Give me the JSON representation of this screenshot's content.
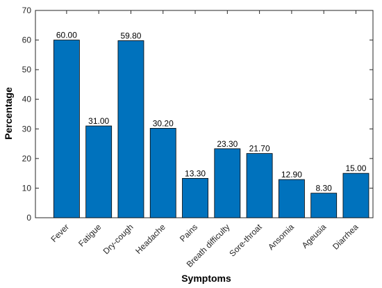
{
  "chart_data": {
    "type": "bar",
    "categories": [
      "Fever",
      "Fatigue",
      "Dry-cough",
      "Headache",
      "Pains",
      "Breath difficulty",
      "Sore-throat",
      "Ansomia",
      "Ageusia",
      "Diarrhea"
    ],
    "values": [
      60.0,
      31.0,
      59.8,
      30.2,
      13.3,
      23.3,
      21.7,
      12.9,
      8.3,
      15.0
    ],
    "data_labels": [
      "60.00",
      "31.00",
      "59.80",
      "30.20",
      "13.30",
      "23.30",
      "21.70",
      "12.90",
      "8.30",
      "15.00"
    ],
    "title": "",
    "xlabel": "Symptoms",
    "ylabel": "Percentage",
    "ylim": [
      0,
      70
    ],
    "yticks": [
      0,
      10,
      20,
      30,
      40,
      50,
      60,
      70
    ],
    "grid": false,
    "legend": "none",
    "bar_color": "#0072BD"
  }
}
